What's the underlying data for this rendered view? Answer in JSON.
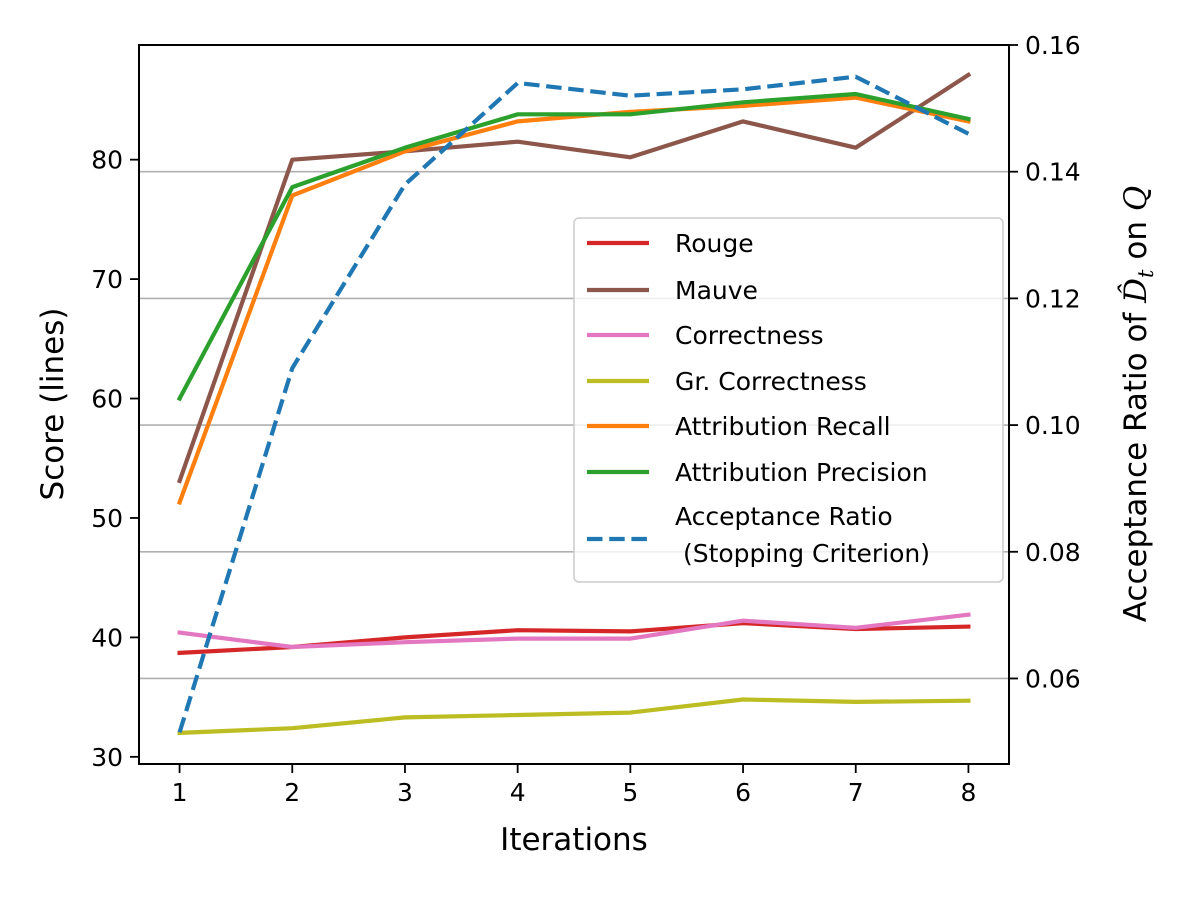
{
  "chart_data": {
    "type": "line",
    "xlabel": "Iterations",
    "ylabel": "Score (lines)",
    "y2label_prefix": "Acceptance Ratio of ",
    "y2label_math": "D̂",
    "y2label_sub": "t",
    "y2label_mid": " on ",
    "y2label_q": "Q",
    "x": [
      1,
      2,
      3,
      4,
      5,
      6,
      7,
      8
    ],
    "xticks": [
      "1",
      "2",
      "3",
      "4",
      "5",
      "6",
      "7",
      "8"
    ],
    "xlim": [
      0.64,
      8.36
    ],
    "ylim": [
      29.4,
      89.6
    ],
    "yticks": [
      "30",
      "40",
      "50",
      "60",
      "70",
      "80"
    ],
    "yticks_values": [
      30,
      40,
      50,
      60,
      70,
      80
    ],
    "y2lim": [
      0.0465,
      0.16
    ],
    "y2ticks": [
      "0.06",
      "0.08",
      "0.10",
      "0.12",
      "0.14",
      "0.16"
    ],
    "y2ticks_values": [
      0.06,
      0.08,
      0.1,
      0.12,
      0.14,
      0.16
    ],
    "grid": "horizontal lines at right-axis ticks",
    "legend_position": "center-right",
    "series": [
      {
        "name": "Rouge",
        "axis": "left",
        "color": "#d62728",
        "dash": "solid",
        "values": [
          38.7,
          39.2,
          40.0,
          40.6,
          40.5,
          41.2,
          40.7,
          40.9
        ]
      },
      {
        "name": "Mauve",
        "axis": "left",
        "color": "#8c564b",
        "dash": "solid",
        "values": [
          53.1,
          80.0,
          80.7,
          81.5,
          80.2,
          83.2,
          81.0,
          87.1
        ]
      },
      {
        "name": "Correctness",
        "axis": "left",
        "color": "#e377c2",
        "dash": "solid",
        "values": [
          40.4,
          39.2,
          39.6,
          39.9,
          39.9,
          41.4,
          40.8,
          41.9
        ]
      },
      {
        "name": "Gr. Correctness",
        "axis": "left",
        "color": "#bcbd22",
        "dash": "solid",
        "values": [
          32.0,
          32.4,
          33.3,
          33.5,
          33.7,
          34.8,
          34.6,
          34.7
        ]
      },
      {
        "name": "Attribution Recall",
        "axis": "left",
        "color": "#ff7f0e",
        "dash": "solid",
        "values": [
          51.3,
          77.0,
          80.7,
          83.2,
          84.0,
          84.5,
          85.2,
          83.2
        ]
      },
      {
        "name": "Attribution Precision",
        "axis": "left",
        "color": "#2ca02c",
        "dash": "solid",
        "values": [
          60.0,
          77.7,
          81.0,
          83.8,
          83.8,
          84.8,
          85.5,
          83.4
        ]
      },
      {
        "name": "Acceptance Ratio\n (Stopping Criterion)",
        "name_line1": "Acceptance Ratio",
        "name_line2": " (Stopping Criterion)",
        "axis": "right",
        "color": "#1f77b4",
        "dash": "dashed",
        "values": [
          0.0515,
          0.109,
          0.138,
          0.154,
          0.152,
          0.153,
          0.155,
          0.146
        ]
      }
    ]
  }
}
